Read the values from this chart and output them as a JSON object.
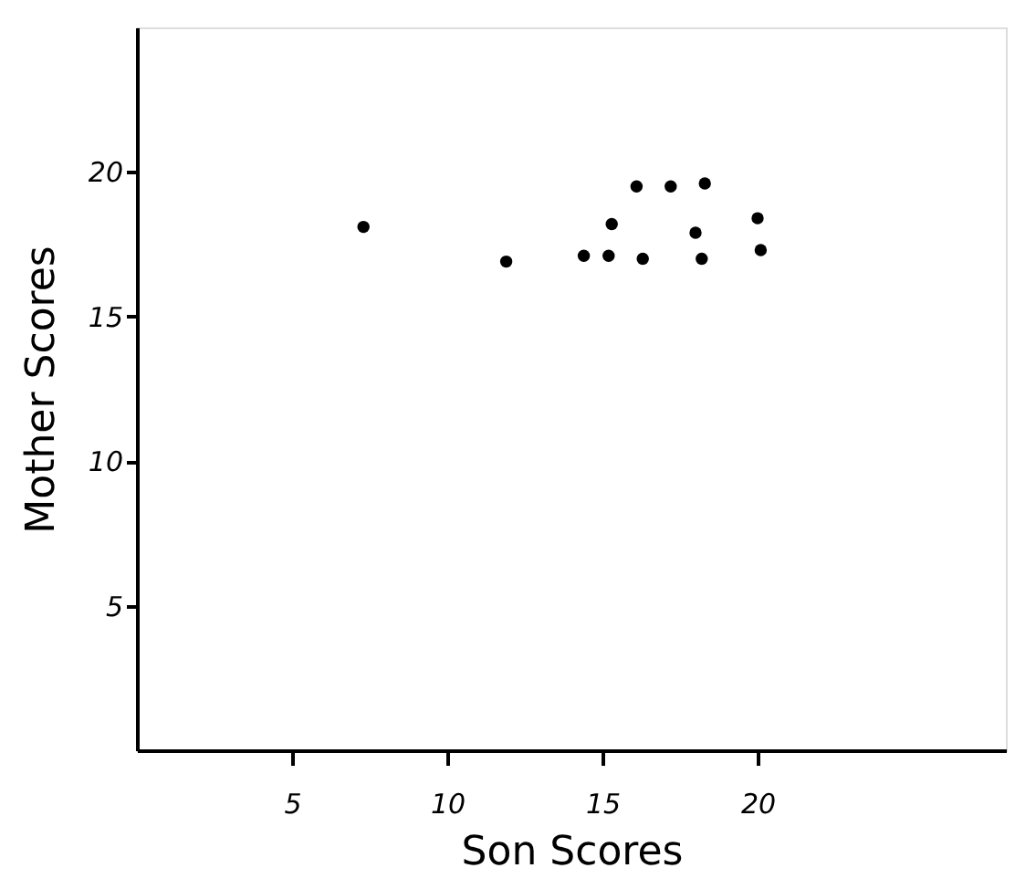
{
  "chart_data": {
    "type": "scatter",
    "xlabel": "Son   Scores",
    "ylabel": "Mother   Scores",
    "x": [
      7.3,
      11.9,
      14.4,
      15.2,
      15.3,
      16.3,
      16.1,
      17.2,
      18.3,
      18.0,
      18.2,
      20.0,
      20.1
    ],
    "series": [
      {
        "color": "#000000",
        "values": [
          18.1,
          16.9,
          17.1,
          17.1,
          18.2,
          17.0,
          19.5,
          19.5,
          19.6,
          17.9,
          17.0,
          18.4,
          17.3
        ]
      }
    ],
    "xlim": [
      0,
      28
    ],
    "ylim": [
      0,
      25
    ],
    "xticks": [
      5,
      10,
      15,
      20
    ],
    "yticks": [
      5,
      10,
      15,
      20
    ],
    "grid": false
  }
}
